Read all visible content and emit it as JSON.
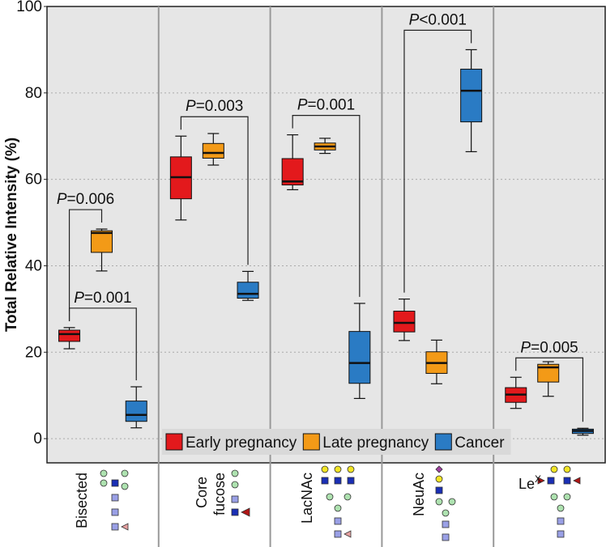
{
  "chart_data": {
    "type": "box",
    "y_label": "Total Relative Intensity (%)",
    "categories": [
      "Bisected",
      "Core fucose",
      "LacNAc",
      "NeuAc",
      "LeX"
    ],
    "ylim": [
      -5.6,
      100
    ],
    "yticks": [
      0,
      20,
      40,
      60,
      80,
      100
    ],
    "grid": true,
    "legend": "bottom",
    "series": [
      {
        "name": "Early pregnancy",
        "color": "#e3191c",
        "values": [
          {
            "min": 20.8,
            "q1": 22.5,
            "median": 24.2,
            "q3": 25.1,
            "max": 25.7
          },
          {
            "min": 50.6,
            "q1": 55.5,
            "median": 60.5,
            "q3": 65.2,
            "max": 70
          },
          {
            "min": 57.6,
            "q1": 58.7,
            "median": 59.5,
            "q3": 64.8,
            "max": 70.3
          },
          {
            "min": 22.7,
            "q1": 24.7,
            "median": 26.8,
            "q3": 29.5,
            "max": 32.3
          },
          {
            "min": 7,
            "q1": 8.4,
            "median": 10.2,
            "q3": 11.8,
            "max": 14.2
          }
        ]
      },
      {
        "name": "Late pregnancy",
        "color": "#f39a17",
        "values": [
          {
            "min": 38.8,
            "q1": 43.1,
            "median": 47.6,
            "q3": 48.1,
            "max": 48.5
          },
          {
            "min": 63.3,
            "q1": 64.9,
            "median": 66.1,
            "q3": 68.3,
            "max": 70.6
          },
          {
            "min": 66,
            "q1": 66.8,
            "median": 67.6,
            "q3": 68.4,
            "max": 69.5
          },
          {
            "min": 12.7,
            "q1": 15.1,
            "median": 17.5,
            "q3": 20.1,
            "max": 22.8
          },
          {
            "min": 9.8,
            "q1": 13.1,
            "median": 16.5,
            "q3": 17.2,
            "max": 17.8
          }
        ]
      },
      {
        "name": "Cancer",
        "color": "#2a7bc4",
        "values": [
          {
            "min": 2.5,
            "q1": 4,
            "median": 5.5,
            "q3": 8.7,
            "max": 12
          },
          {
            "min": 32,
            "q1": 32.5,
            "median": 33.5,
            "q3": 36.2,
            "max": 38.7
          },
          {
            "min": 9.3,
            "q1": 12.8,
            "median": 17.5,
            "q3": 24.8,
            "max": 31.3
          },
          {
            "min": 66.4,
            "q1": 73.3,
            "median": 80.5,
            "q3": 85.5,
            "max": 90
          },
          {
            "min": 0.8,
            "q1": 1.2,
            "median": 1.8,
            "q3": 2.2,
            "max": 2.4
          }
        ]
      }
    ],
    "annotations": [
      {
        "text": "P=0.006",
        "category": "Bisected",
        "between": [
          "Early pregnancy",
          "Late pregnancy"
        ]
      },
      {
        "text": "P=0.001",
        "category": "Bisected",
        "between": [
          "Early pregnancy",
          "Cancer"
        ]
      },
      {
        "text": "P=0.003",
        "category": "Core fucose",
        "between": [
          "Early pregnancy",
          "Cancer"
        ]
      },
      {
        "text": "P=0.001",
        "category": "LacNAc",
        "between": [
          "Early pregnancy",
          "Cancer"
        ]
      },
      {
        "text": "P<0.001",
        "category": "NeuAc",
        "between": [
          "Early pregnancy",
          "Cancer"
        ]
      },
      {
        "text": "P=0.005",
        "category": "LeX",
        "between": [
          "Early pregnancy",
          "Cancer"
        ]
      }
    ]
  }
}
